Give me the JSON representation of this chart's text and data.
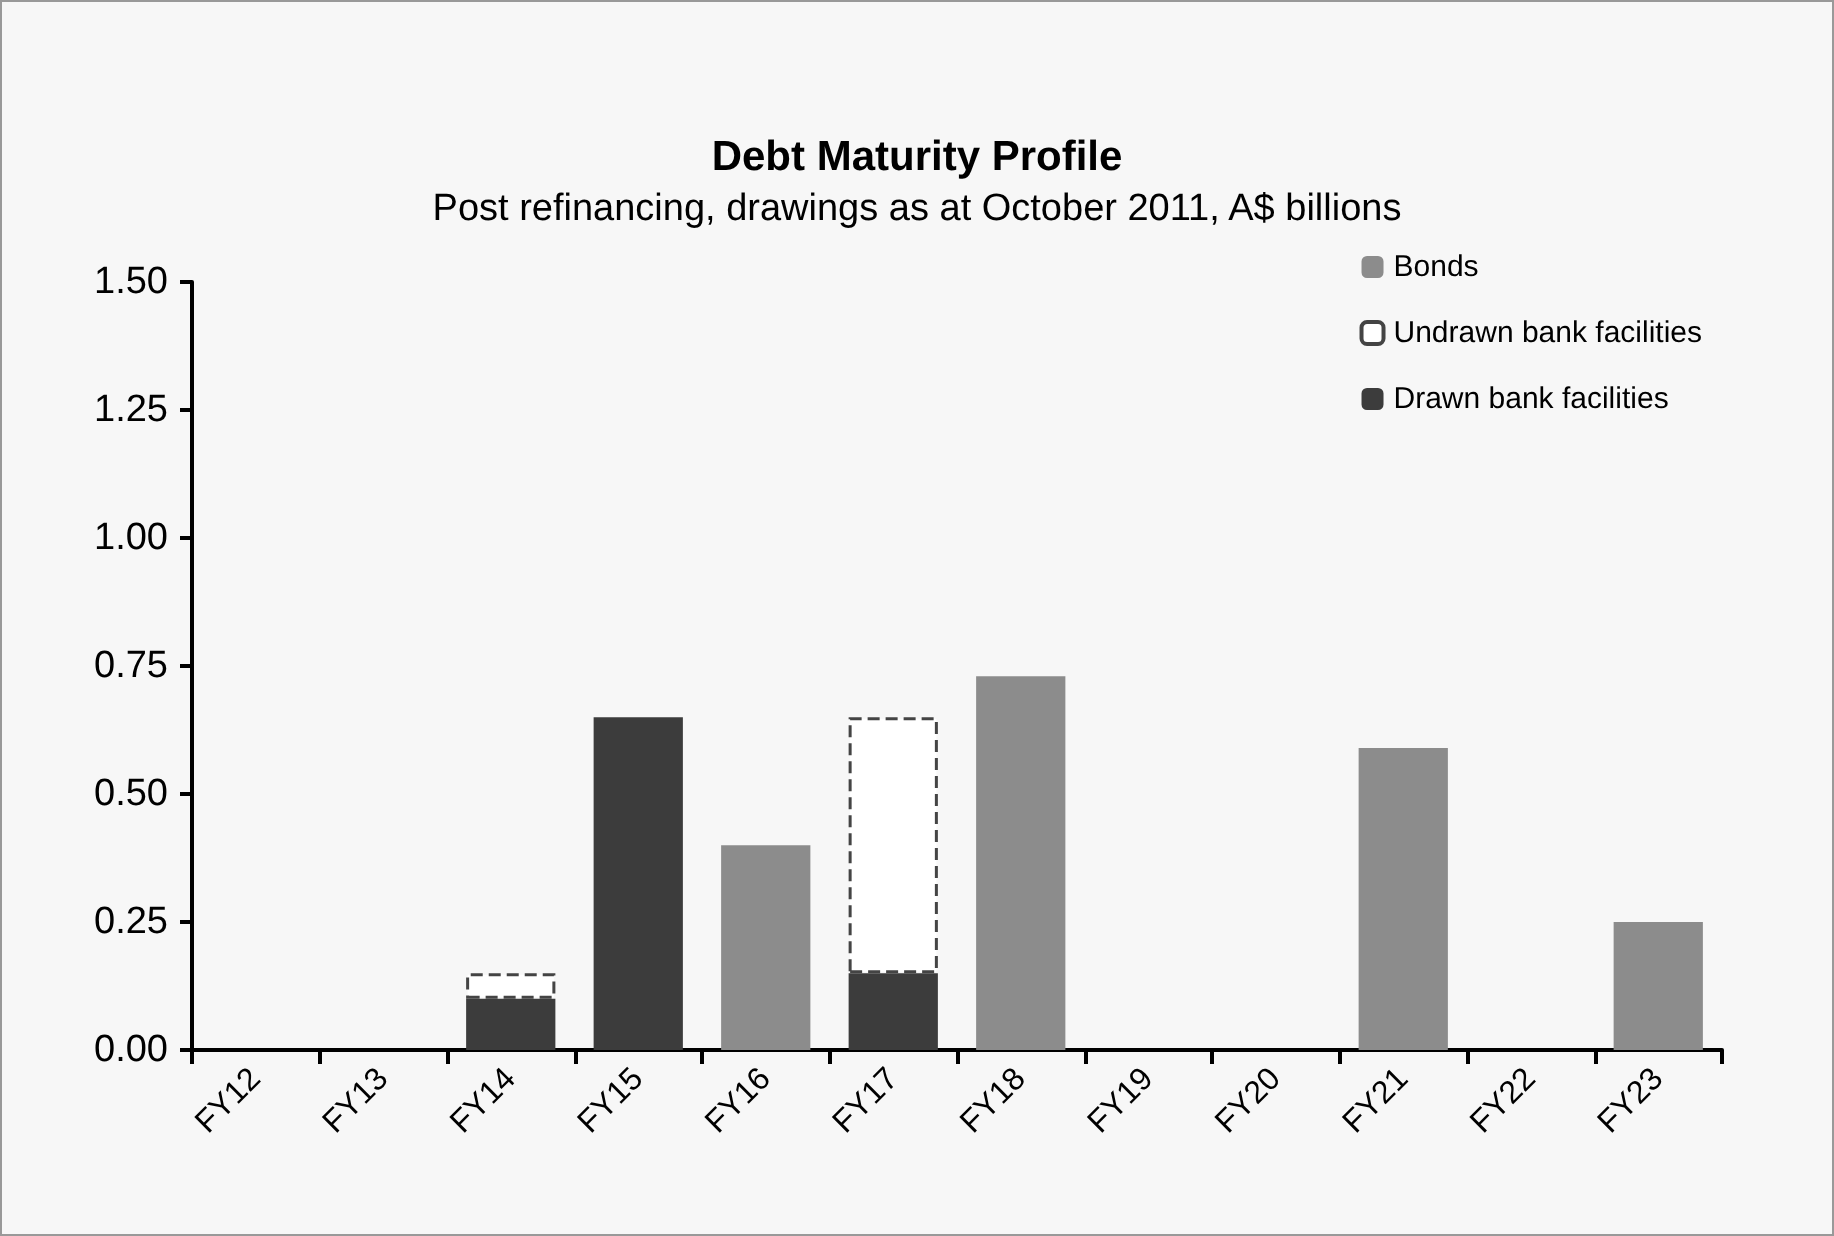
{
  "chart_data": {
    "type": "bar",
    "title": "Debt Maturity Profile",
    "subtitle": "Post refinancing, drawings as at October 2011, A$ billions",
    "categories": [
      "FY12",
      "FY13",
      "FY14",
      "FY15",
      "FY16",
      "FY17",
      "FY18",
      "FY19",
      "FY20",
      "FY21",
      "FY22",
      "FY23"
    ],
    "stacked": true,
    "series": [
      {
        "name": "Drawn bank facilities",
        "color": "#3c3c3c",
        "values": [
          null,
          null,
          0.1,
          0.65,
          null,
          0.15,
          null,
          null,
          null,
          null,
          null,
          null
        ]
      },
      {
        "name": "Undrawn bank facilities",
        "color": "#ffffff",
        "line_style": "dashed",
        "values": [
          null,
          null,
          0.05,
          null,
          null,
          0.5,
          null,
          null,
          null,
          null,
          null,
          null
        ]
      },
      {
        "name": "Bonds",
        "color": "#8c8c8c",
        "values": [
          null,
          null,
          null,
          null,
          0.4,
          null,
          0.73,
          null,
          null,
          0.59,
          null,
          0.25
        ]
      }
    ],
    "ylim": [
      0,
      1.5
    ],
    "yticks": [
      {
        "value": 0,
        "label": "0.00"
      },
      {
        "value": 0.25,
        "label": "0.25"
      },
      {
        "value": 0.5,
        "label": "0.50"
      },
      {
        "value": 0.75,
        "label": "0.75"
      },
      {
        "value": 1,
        "label": "1.00"
      },
      {
        "value": 1.25,
        "label": "1.25"
      },
      {
        "value": 1.5,
        "label": "1.50"
      }
    ],
    "grid": false,
    "legend": "top right"
  }
}
